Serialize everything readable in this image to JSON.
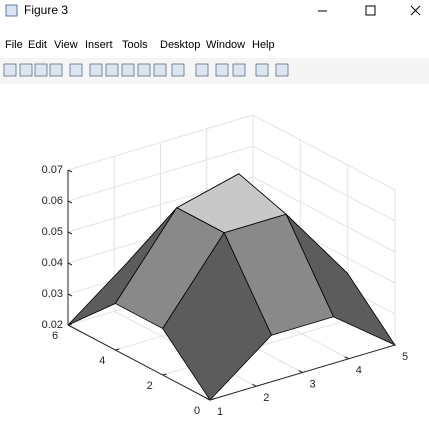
{
  "window": {
    "title": "Figure 3",
    "menu": [
      "File",
      "Edit",
      "View",
      "Insert",
      "Tools",
      "Desktop",
      "Window",
      "Help"
    ]
  },
  "chart_data": {
    "type": "surface",
    "x": [
      1,
      2.33,
      3.67,
      5
    ],
    "y": [
      0,
      2,
      4,
      6
    ],
    "z": [
      [
        0.02,
        0.035,
        0.035,
        0.02
      ],
      [
        0.035,
        0.06,
        0.06,
        0.035
      ],
      [
        0.035,
        0.06,
        0.065,
        0.035
      ],
      [
        0.02,
        0.035,
        0.035,
        0.02
      ]
    ],
    "xlim": [
      1,
      5
    ],
    "ylim": [
      0,
      6
    ],
    "zlim": [
      0.02,
      0.07
    ],
    "xticks": [
      1,
      2,
      3,
      4,
      5
    ],
    "yticks": [
      0,
      2,
      4,
      6
    ],
    "zticks": [
      0.02,
      0.03,
      0.04,
      0.05,
      0.06,
      0.07
    ],
    "colormap": "gray",
    "grid": true
  }
}
